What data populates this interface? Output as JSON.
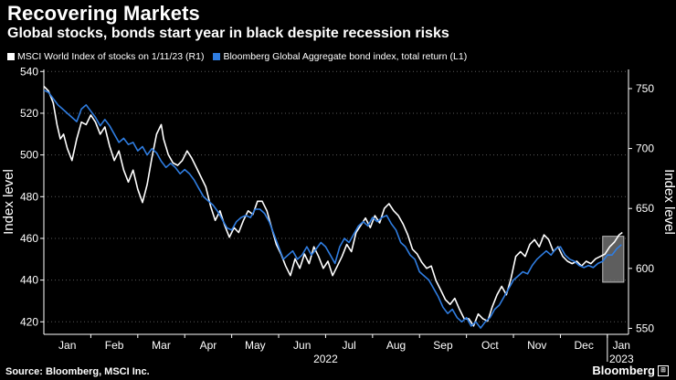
{
  "title": "Recovering Markets",
  "subtitle": "Global stocks, bonds start year in black despite recession risks",
  "legend": [
    {
      "label": "MSCI World Index of stocks on 1/11/23 (R1)",
      "color": "#ffffff"
    },
    {
      "label": "Bloomberg Global Aggregate bond index, total return (L1)",
      "color": "#2f7de1"
    }
  ],
  "footer": {
    "source": "Source: Bloomberg, MSCI Inc.",
    "brand": "Bloomberg",
    "brand_mark": "⊞"
  },
  "chart_data": {
    "type": "line",
    "left_axis": {
      "label": "Index level",
      "range": [
        414,
        541
      ],
      "ticks": [
        420,
        440,
        460,
        480,
        500,
        520,
        540
      ]
    },
    "right_axis": {
      "label": "Index level",
      "range": [
        545,
        766
      ],
      "ticks": [
        550,
        600,
        650,
        700,
        750
      ]
    },
    "x_range": [
      0,
      12.45
    ],
    "month_ticks": [
      "Jan",
      "Feb",
      "Mar",
      "Apr",
      "May",
      "Jun",
      "Jul",
      "Aug",
      "Sep",
      "Oct",
      "Nov",
      "Dec",
      "Jan"
    ],
    "year_labels": [
      "2022",
      "2023"
    ],
    "grid": true,
    "highlight_box": {
      "x_start": 11.9,
      "x_end": 12.35,
      "y_low_left": 439,
      "y_high_left": 461
    },
    "series": [
      {
        "name": "MSCI World Index of stocks on 1/11/23 (R1)",
        "axis": "right",
        "color": "#ffffff",
        "points": [
          [
            0.0,
            752
          ],
          [
            0.1,
            748
          ],
          [
            0.2,
            738
          ],
          [
            0.28,
            720
          ],
          [
            0.35,
            708
          ],
          [
            0.42,
            712
          ],
          [
            0.5,
            700
          ],
          [
            0.6,
            690
          ],
          [
            0.7,
            708
          ],
          [
            0.8,
            722
          ],
          [
            0.9,
            720
          ],
          [
            1.0,
            728
          ],
          [
            1.1,
            722
          ],
          [
            1.2,
            712
          ],
          [
            1.3,
            718
          ],
          [
            1.4,
            702
          ],
          [
            1.5,
            690
          ],
          [
            1.6,
            698
          ],
          [
            1.7,
            682
          ],
          [
            1.8,
            672
          ],
          [
            1.9,
            682
          ],
          [
            2.0,
            666
          ],
          [
            2.1,
            655
          ],
          [
            2.2,
            670
          ],
          [
            2.3,
            692
          ],
          [
            2.4,
            712
          ],
          [
            2.5,
            720
          ],
          [
            2.55,
            708
          ],
          [
            2.65,
            695
          ],
          [
            2.75,
            688
          ],
          [
            2.85,
            686
          ],
          [
            2.95,
            690
          ],
          [
            3.05,
            698
          ],
          [
            3.15,
            692
          ],
          [
            3.25,
            684
          ],
          [
            3.35,
            676
          ],
          [
            3.45,
            668
          ],
          [
            3.55,
            652
          ],
          [
            3.65,
            640
          ],
          [
            3.75,
            648
          ],
          [
            3.85,
            636
          ],
          [
            3.95,
            626
          ],
          [
            4.05,
            634
          ],
          [
            4.15,
            630
          ],
          [
            4.25,
            640
          ],
          [
            4.35,
            648
          ],
          [
            4.45,
            645
          ],
          [
            4.55,
            656
          ],
          [
            4.65,
            656
          ],
          [
            4.75,
            648
          ],
          [
            4.85,
            634
          ],
          [
            4.95,
            620
          ],
          [
            5.05,
            612
          ],
          [
            5.15,
            602
          ],
          [
            5.25,
            594
          ],
          [
            5.35,
            608
          ],
          [
            5.45,
            600
          ],
          [
            5.55,
            612
          ],
          [
            5.65,
            604
          ],
          [
            5.75,
            618
          ],
          [
            5.85,
            610
          ],
          [
            5.95,
            600
          ],
          [
            6.05,
            606
          ],
          [
            6.15,
            594
          ],
          [
            6.25,
            602
          ],
          [
            6.35,
            610
          ],
          [
            6.45,
            620
          ],
          [
            6.55,
            614
          ],
          [
            6.65,
            630
          ],
          [
            6.75,
            636
          ],
          [
            6.85,
            642
          ],
          [
            6.95,
            634
          ],
          [
            7.05,
            644
          ],
          [
            7.15,
            638
          ],
          [
            7.25,
            650
          ],
          [
            7.35,
            654
          ],
          [
            7.45,
            648
          ],
          [
            7.55,
            644
          ],
          [
            7.65,
            637
          ],
          [
            7.75,
            628
          ],
          [
            7.85,
            616
          ],
          [
            7.95,
            612
          ],
          [
            8.05,
            605
          ],
          [
            8.15,
            600
          ],
          [
            8.25,
            602
          ],
          [
            8.35,
            590
          ],
          [
            8.45,
            582
          ],
          [
            8.55,
            574
          ],
          [
            8.65,
            570
          ],
          [
            8.75,
            575
          ],
          [
            8.85,
            566
          ],
          [
            8.95,
            558
          ],
          [
            9.05,
            558
          ],
          [
            9.15,
            552
          ],
          [
            9.25,
            562
          ],
          [
            9.35,
            558
          ],
          [
            9.45,
            556
          ],
          [
            9.55,
            568
          ],
          [
            9.65,
            578
          ],
          [
            9.75,
            585
          ],
          [
            9.85,
            578
          ],
          [
            9.95,
            592
          ],
          [
            10.05,
            610
          ],
          [
            10.15,
            614
          ],
          [
            10.25,
            610
          ],
          [
            10.35,
            620
          ],
          [
            10.45,
            624
          ],
          [
            10.55,
            618
          ],
          [
            10.65,
            628
          ],
          [
            10.75,
            624
          ],
          [
            10.85,
            614
          ],
          [
            10.95,
            618
          ],
          [
            11.05,
            610
          ],
          [
            11.15,
            606
          ],
          [
            11.25,
            604
          ],
          [
            11.35,
            606
          ],
          [
            11.45,
            602
          ],
          [
            11.55,
            606
          ],
          [
            11.65,
            604
          ],
          [
            11.75,
            608
          ],
          [
            11.85,
            610
          ],
          [
            11.95,
            612
          ],
          [
            12.05,
            618
          ],
          [
            12.15,
            622
          ],
          [
            12.25,
            628
          ],
          [
            12.32,
            630
          ]
        ]
      },
      {
        "name": "Bloomberg Global Aggregate bond index, total return (L1)",
        "axis": "left",
        "color": "#2f7de1",
        "points": [
          [
            0.0,
            531
          ],
          [
            0.1,
            530
          ],
          [
            0.2,
            527
          ],
          [
            0.3,
            524
          ],
          [
            0.4,
            522
          ],
          [
            0.5,
            520
          ],
          [
            0.6,
            518
          ],
          [
            0.7,
            516
          ],
          [
            0.8,
            522
          ],
          [
            0.9,
            524
          ],
          [
            1.0,
            521
          ],
          [
            1.1,
            518
          ],
          [
            1.2,
            514
          ],
          [
            1.3,
            517
          ],
          [
            1.4,
            514
          ],
          [
            1.5,
            510
          ],
          [
            1.6,
            506
          ],
          [
            1.7,
            508
          ],
          [
            1.8,
            505
          ],
          [
            1.9,
            506
          ],
          [
            2.0,
            502
          ],
          [
            2.1,
            504
          ],
          [
            2.2,
            500
          ],
          [
            2.3,
            503
          ],
          [
            2.4,
            501
          ],
          [
            2.5,
            497
          ],
          [
            2.6,
            494
          ],
          [
            2.7,
            496
          ],
          [
            2.8,
            494
          ],
          [
            2.9,
            491
          ],
          [
            3.0,
            493
          ],
          [
            3.1,
            491
          ],
          [
            3.2,
            488
          ],
          [
            3.3,
            484
          ],
          [
            3.4,
            480
          ],
          [
            3.5,
            478
          ],
          [
            3.6,
            476
          ],
          [
            3.7,
            473
          ],
          [
            3.8,
            469
          ],
          [
            3.9,
            465
          ],
          [
            4.0,
            464
          ],
          [
            4.1,
            468
          ],
          [
            4.2,
            470
          ],
          [
            4.3,
            471
          ],
          [
            4.4,
            470
          ],
          [
            4.5,
            474
          ],
          [
            4.6,
            474
          ],
          [
            4.7,
            472
          ],
          [
            4.8,
            468
          ],
          [
            4.9,
            462
          ],
          [
            5.0,
            456
          ],
          [
            5.1,
            450
          ],
          [
            5.2,
            452
          ],
          [
            5.3,
            454
          ],
          [
            5.4,
            450
          ],
          [
            5.5,
            452
          ],
          [
            5.6,
            456
          ],
          [
            5.7,
            452
          ],
          [
            5.8,
            455
          ],
          [
            5.9,
            458
          ],
          [
            6.0,
            456
          ],
          [
            6.1,
            452
          ],
          [
            6.2,
            448
          ],
          [
            6.3,
            456
          ],
          [
            6.4,
            460
          ],
          [
            6.5,
            458
          ],
          [
            6.6,
            462
          ],
          [
            6.7,
            466
          ],
          [
            6.8,
            468
          ],
          [
            6.9,
            466
          ],
          [
            7.0,
            470
          ],
          [
            7.1,
            468
          ],
          [
            7.2,
            470
          ],
          [
            7.3,
            471
          ],
          [
            7.4,
            467
          ],
          [
            7.5,
            464
          ],
          [
            7.6,
            458
          ],
          [
            7.7,
            456
          ],
          [
            7.8,
            452
          ],
          [
            7.9,
            450
          ],
          [
            8.0,
            444
          ],
          [
            8.1,
            442
          ],
          [
            8.2,
            440
          ],
          [
            8.3,
            436
          ],
          [
            8.4,
            432
          ],
          [
            8.5,
            427
          ],
          [
            8.6,
            424
          ],
          [
            8.7,
            426
          ],
          [
            8.8,
            422
          ],
          [
            8.9,
            420
          ],
          [
            9.0,
            422
          ],
          [
            9.1,
            418
          ],
          [
            9.2,
            420
          ],
          [
            9.3,
            417
          ],
          [
            9.4,
            420
          ],
          [
            9.5,
            422
          ],
          [
            9.6,
            426
          ],
          [
            9.7,
            428
          ],
          [
            9.8,
            432
          ],
          [
            9.9,
            436
          ],
          [
            10.0,
            440
          ],
          [
            10.1,
            442
          ],
          [
            10.2,
            444
          ],
          [
            10.3,
            443
          ],
          [
            10.4,
            447
          ],
          [
            10.5,
            450
          ],
          [
            10.6,
            452
          ],
          [
            10.7,
            454
          ],
          [
            10.8,
            452
          ],
          [
            10.9,
            455
          ],
          [
            11.0,
            456
          ],
          [
            11.1,
            452
          ],
          [
            11.2,
            450
          ],
          [
            11.3,
            449
          ],
          [
            11.4,
            447
          ],
          [
            11.5,
            446
          ],
          [
            11.6,
            447
          ],
          [
            11.7,
            446
          ],
          [
            11.8,
            448
          ],
          [
            11.9,
            449
          ],
          [
            12.0,
            452
          ],
          [
            12.1,
            452
          ],
          [
            12.2,
            455
          ],
          [
            12.3,
            457
          ]
        ]
      }
    ]
  }
}
